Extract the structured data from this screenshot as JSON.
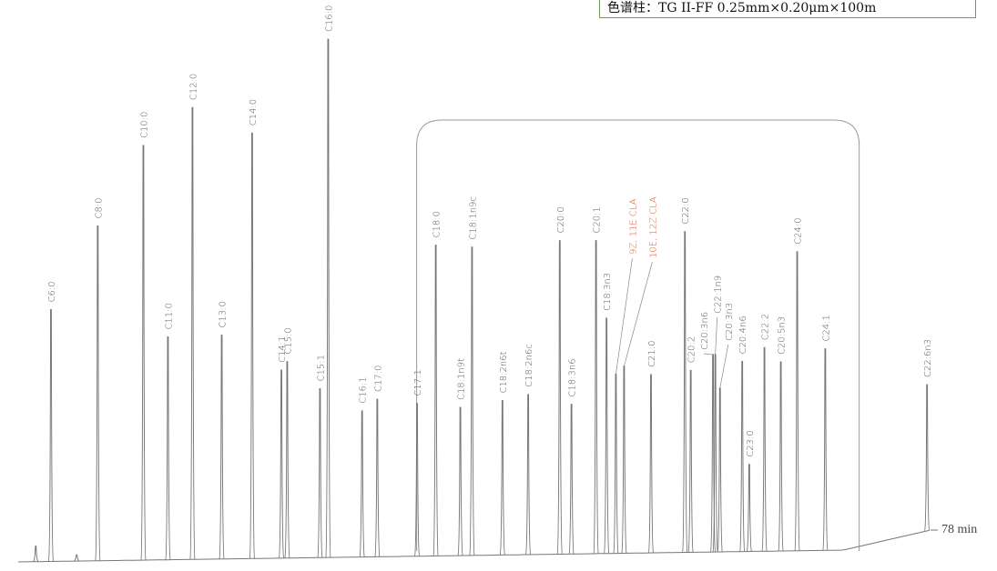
{
  "column_info": "色谱柱：TG II-FF 0.25mm×0.20μm×100m",
  "chart_data": {
    "type": "line",
    "subtype": "chromatogram",
    "xlabel": "",
    "ylabel": "",
    "x_unit": "min",
    "xlim": [
      0,
      78
    ],
    "end_label": "78 min",
    "y_unit": "relative intensity (% of tallest peak)",
    "grid": false,
    "colors": {
      "trace": "#777777",
      "label": "#555555",
      "highlight": "#d9532a",
      "bracket": "#999999",
      "box_border": "#6a9f55"
    },
    "bracketed_range_min": [
      35.0,
      70.5
    ],
    "peaks": [
      {
        "name": "",
        "rt": 1.5,
        "height": 3.0
      },
      {
        "name": "C6:0",
        "rt": 2.8,
        "height": 48.6
      },
      {
        "name": "",
        "rt": 5.0,
        "height": 1.2
      },
      {
        "name": "C8:0",
        "rt": 6.8,
        "height": 64.6
      },
      {
        "name": "C10:0",
        "rt": 10.7,
        "height": 80.0
      },
      {
        "name": "C11:0",
        "rt": 12.8,
        "height": 43.0
      },
      {
        "name": "C12:0",
        "rt": 14.9,
        "height": 87.2
      },
      {
        "name": "C13:0",
        "rt": 17.4,
        "height": 43.2
      },
      {
        "name": "C14:0",
        "rt": 20.0,
        "height": 82.1
      },
      {
        "name": "C14:1",
        "rt": 22.5,
        "height": 36.3
      },
      {
        "name": "C15:0",
        "rt": 23.0,
        "height": 37.9
      },
      {
        "name": "C15:1",
        "rt": 25.8,
        "height": 32.6
      },
      {
        "name": "C16:0",
        "rt": 26.5,
        "height": 100
      },
      {
        "name": "C16:1",
        "rt": 29.4,
        "height": 28.2
      },
      {
        "name": "C17:0",
        "rt": 30.7,
        "height": 30.4
      },
      {
        "name": "C17:1",
        "rt": 34.1,
        "height": 29.5
      },
      {
        "name": "C18:0",
        "rt": 35.7,
        "height": 60.0
      },
      {
        "name": "C18:1n9t",
        "rt": 37.8,
        "height": 28.6
      },
      {
        "name": "C18:1n9c",
        "rt": 38.8,
        "height": 59.5
      },
      {
        "name": "C18:2n6t",
        "rt": 41.4,
        "height": 29.8
      },
      {
        "name": "C18:2n6c",
        "rt": 43.6,
        "height": 30.9
      },
      {
        "name": "C20:0",
        "rt": 46.3,
        "height": 60.5
      },
      {
        "name": "C18:3n6",
        "rt": 47.3,
        "height": 28.9
      },
      {
        "name": "C20:1",
        "rt": 49.4,
        "height": 60.4
      },
      {
        "name": "C18:3n3",
        "rt": 50.3,
        "height": 45.4
      },
      {
        "name": "9Z, 11E CLA",
        "rt": 51.1,
        "height": 34.6,
        "highlight": true
      },
      {
        "name": "10E, 12Z CLA",
        "rt": 51.8,
        "height": 36.1,
        "highlight": true
      },
      {
        "name": "C21:0",
        "rt": 54.1,
        "height": 34.4
      },
      {
        "name": "C22:0",
        "rt": 57.0,
        "height": 61.9
      },
      {
        "name": "C20:2",
        "rt": 57.5,
        "height": 35.1
      },
      {
        "name": "C20:3n6",
        "rt": 59.4,
        "height": 38.1
      },
      {
        "name": "C22:1n9",
        "rt": 59.6,
        "height": 38.1
      },
      {
        "name": "C20:3n3",
        "rt": 60.0,
        "height": 31.6
      },
      {
        "name": "C20:4n6",
        "rt": 61.9,
        "height": 36.7
      },
      {
        "name": "C23:0",
        "rt": 62.5,
        "height": 16.8
      },
      {
        "name": "C22:2",
        "rt": 63.8,
        "height": 39.3
      },
      {
        "name": "C20:5n3",
        "rt": 65.2,
        "height": 36.5
      },
      {
        "name": "C24:0",
        "rt": 66.6,
        "height": 57.7
      },
      {
        "name": "C24:1",
        "rt": 69.0,
        "height": 38.9
      },
      {
        "name": "C22:6n3",
        "rt": 77.7,
        "height": 28.2
      }
    ]
  }
}
